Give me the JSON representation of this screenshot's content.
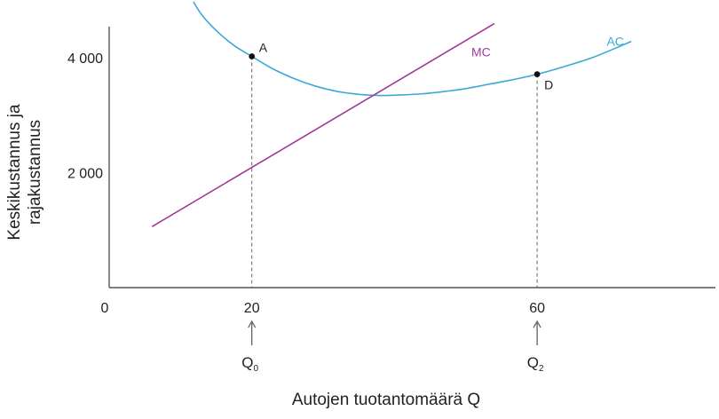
{
  "chart_data": {
    "type": "line",
    "title": "",
    "xlabel": "Autojen tuotantomäärä Q",
    "ylabel_line1": "Keskikustannus ja",
    "ylabel_line2": "rajakustannus",
    "xlim": [
      0,
      85
    ],
    "ylim": [
      0,
      5000
    ],
    "grid": false,
    "x_ticks": [
      {
        "value": 0,
        "label": "0"
      },
      {
        "value": 20,
        "label": "20"
      },
      {
        "value": 60,
        "label": "60"
      }
    ],
    "y_ticks": [
      {
        "value": 2000,
        "label": "2 000"
      },
      {
        "value": 4000,
        "label": "4 000"
      }
    ],
    "series": [
      {
        "name": "AC",
        "color": "#3aa9d6",
        "x": [
          11.8,
          13,
          15,
          17.5,
          20,
          23,
          26,
          29,
          32,
          35,
          38,
          41,
          44,
          47,
          50,
          53,
          56,
          60,
          64,
          68,
          73.2
        ],
        "y": [
          4970,
          4740,
          4470,
          4210,
          4020,
          3800,
          3630,
          3500,
          3410,
          3360,
          3340,
          3350,
          3370,
          3410,
          3460,
          3530,
          3600,
          3710,
          3850,
          4010,
          4280
        ]
      },
      {
        "name": "MC",
        "color": "#a1399b",
        "x": [
          6,
          54
        ],
        "y": [
          1060,
          4590
        ]
      }
    ],
    "points": [
      {
        "name": "A",
        "x": 20,
        "y": 4020
      },
      {
        "name": "D",
        "x": 60,
        "y": 3710
      }
    ],
    "quantity_markers": [
      {
        "x": 20,
        "base": "Q",
        "sub": "0"
      },
      {
        "x": 60,
        "base": "Q",
        "sub": "2"
      }
    ],
    "colors": {
      "ac": "#3aa9d6",
      "mc": "#a1399b",
      "axis": "#555555",
      "text": "#222222",
      "point": "#111111",
      "guide": "#666666"
    }
  }
}
